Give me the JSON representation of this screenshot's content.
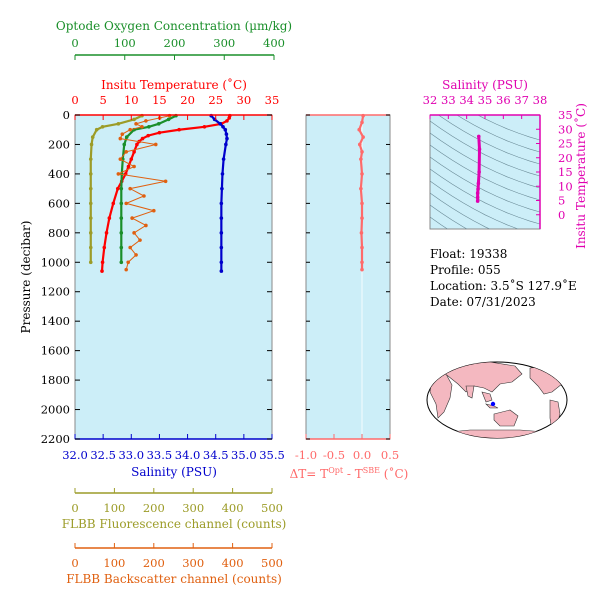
{
  "colors": {
    "oxygen": "#1a8f2a",
    "temperature": "#ff0000",
    "salinity": "#0000cc",
    "fluorescence": "#9c9c28",
    "backscatter": "#e06010",
    "delta_t": "#ff6a6a",
    "ts": "#e000b0",
    "plot_bg": "#cceef8",
    "land": "#f4b8c0",
    "ocean": "#ffffff"
  },
  "info": {
    "float_line": "Float:  19338",
    "profile_line": "Profile:  055",
    "location_line": "Location:  3.5˚S  127.9˚E",
    "date_line": "Date:  07/31/2023"
  },
  "chart_data": [
    {
      "type": "line",
      "panel": "main-profile",
      "ylabel": "Pressure (decibar)",
      "ylim": [
        2200,
        0
      ],
      "y_ticks": [
        "0",
        "200",
        "400",
        "600",
        "800",
        "1000",
        "1200",
        "1400",
        "1600",
        "1800",
        "2000",
        "2200"
      ],
      "axes": {
        "oxygen": {
          "label": "Optode Oxygen Concentration (µm/kg)",
          "lim": [
            0,
            400
          ],
          "ticks": [
            "0",
            "100",
            "200",
            "300",
            "400"
          ]
        },
        "temperature": {
          "label": "Insitu Temperature (˚C)",
          "lim": [
            0,
            35
          ],
          "ticks": [
            "0",
            "5",
            "10",
            "15",
            "20",
            "25",
            "30",
            "35"
          ]
        },
        "salinity": {
          "label": "Salinity (PSU)",
          "lim": [
            32.0,
            35.5
          ],
          "ticks": [
            "32.0",
            "32.5",
            "33.0",
            "33.5",
            "34.0",
            "34.5",
            "35.0",
            "35.5"
          ]
        },
        "fluorescence": {
          "label": "FLBB Fluorescence channel (counts)",
          "lim": [
            0,
            500
          ],
          "ticks": [
            "0",
            "100",
            "200",
            "300",
            "400",
            "500"
          ]
        },
        "backscatter": {
          "label": "FLBB Backscatter channel (counts)",
          "lim": [
            0,
            500
          ],
          "ticks": [
            "0",
            "100",
            "200",
            "300",
            "400",
            "500"
          ]
        }
      },
      "series": [
        {
          "key": "temperature",
          "axis": "temperature",
          "pressure": [
            5,
            20,
            40,
            60,
            80,
            100,
            120,
            140,
            160,
            180,
            200,
            250,
            300,
            350,
            400,
            450,
            500,
            600,
            700,
            800,
            900,
            1000,
            1060
          ],
          "values": [
            27.5,
            27.4,
            27.0,
            26.0,
            23.0,
            18.5,
            15.0,
            13.0,
            12.0,
            11.4,
            11.0,
            10.5,
            10.0,
            9.5,
            9.0,
            8.3,
            7.6,
            6.8,
            6.1,
            5.6,
            5.2,
            4.9,
            4.8
          ]
        },
        {
          "key": "salinity",
          "axis": "salinity",
          "pressure": [
            5,
            30,
            60,
            80,
            100,
            130,
            160,
            200,
            300,
            400,
            500,
            600,
            700,
            800,
            900,
            1000,
            1060
          ],
          "values": [
            34.42,
            34.48,
            34.58,
            34.63,
            34.67,
            34.69,
            34.7,
            34.68,
            34.64,
            34.62,
            34.61,
            34.6,
            34.6,
            34.6,
            34.6,
            34.6,
            34.6
          ]
        },
        {
          "key": "oxygen",
          "axis": "oxygen",
          "pressure": [
            5,
            30,
            60,
            80,
            100,
            150,
            200,
            300,
            400,
            500,
            600,
            700,
            800,
            900,
            1000
          ],
          "values": [
            205,
            190,
            170,
            150,
            120,
            105,
            100,
            97,
            95,
            94,
            94,
            94,
            94,
            94,
            94
          ]
        },
        {
          "key": "fluorescence",
          "axis": "fluorescence",
          "pressure": [
            5,
            30,
            60,
            80,
            100,
            150,
            200,
            300,
            400,
            500,
            600,
            700,
            800,
            900,
            1000
          ],
          "values": [
            170,
            150,
            110,
            70,
            55,
            45,
            42,
            40,
            40,
            40,
            40,
            40,
            40,
            40,
            40
          ]
        },
        {
          "key": "backscatter",
          "axis": "backscatter",
          "pressure": [
            5,
            20,
            40,
            60,
            80,
            100,
            130,
            160,
            200,
            250,
            300,
            350,
            400,
            450,
            500,
            550,
            600,
            650,
            700,
            750,
            800,
            850,
            900,
            950,
            1000,
            1050
          ],
          "values": [
            240,
            215,
            180,
            155,
            170,
            140,
            120,
            115,
            205,
            130,
            115,
            150,
            110,
            230,
            140,
            175,
            130,
            200,
            145,
            180,
            150,
            165,
            140,
            155,
            135,
            130
          ]
        }
      ]
    },
    {
      "type": "line",
      "panel": "delta-t",
      "xlabel": "ΔT= T^Opt - T^SBE (˚C)",
      "xlim": [
        -1.0,
        0.5
      ],
      "x_ticks": [
        "-1.0",
        "-0.5",
        "0.0",
        "0.5"
      ],
      "ylim": [
        2200,
        0
      ],
      "pressure": [
        5,
        50,
        100,
        150,
        200,
        250,
        300,
        400,
        500,
        600,
        700,
        800,
        900,
        1000,
        1050
      ],
      "values": [
        0.02,
        0.0,
        -0.05,
        0.02,
        -0.04,
        0.0,
        -0.02,
        0.0,
        -0.02,
        0.0,
        0.0,
        -0.01,
        0.0,
        0.0,
        0.0
      ]
    },
    {
      "type": "line",
      "panel": "ts-diagram",
      "xlabel": "Salinity (PSU)",
      "ylabel": "Insitu Temperature (˚C)",
      "xlim": [
        32,
        38
      ],
      "ylim": [
        -5,
        35
      ],
      "x_ticks": [
        "32",
        "33",
        "34",
        "35",
        "36",
        "37",
        "38"
      ],
      "y_ticks": [
        "0",
        "5",
        "10",
        "15",
        "20",
        "25",
        "30",
        "35"
      ],
      "salinity": [
        34.6,
        34.6,
        34.6,
        34.62,
        34.64,
        34.68,
        34.7,
        34.66
      ],
      "temperature": [
        4.8,
        6.1,
        7.6,
        9.0,
        11.0,
        15.0,
        23.0,
        27.5
      ]
    }
  ]
}
